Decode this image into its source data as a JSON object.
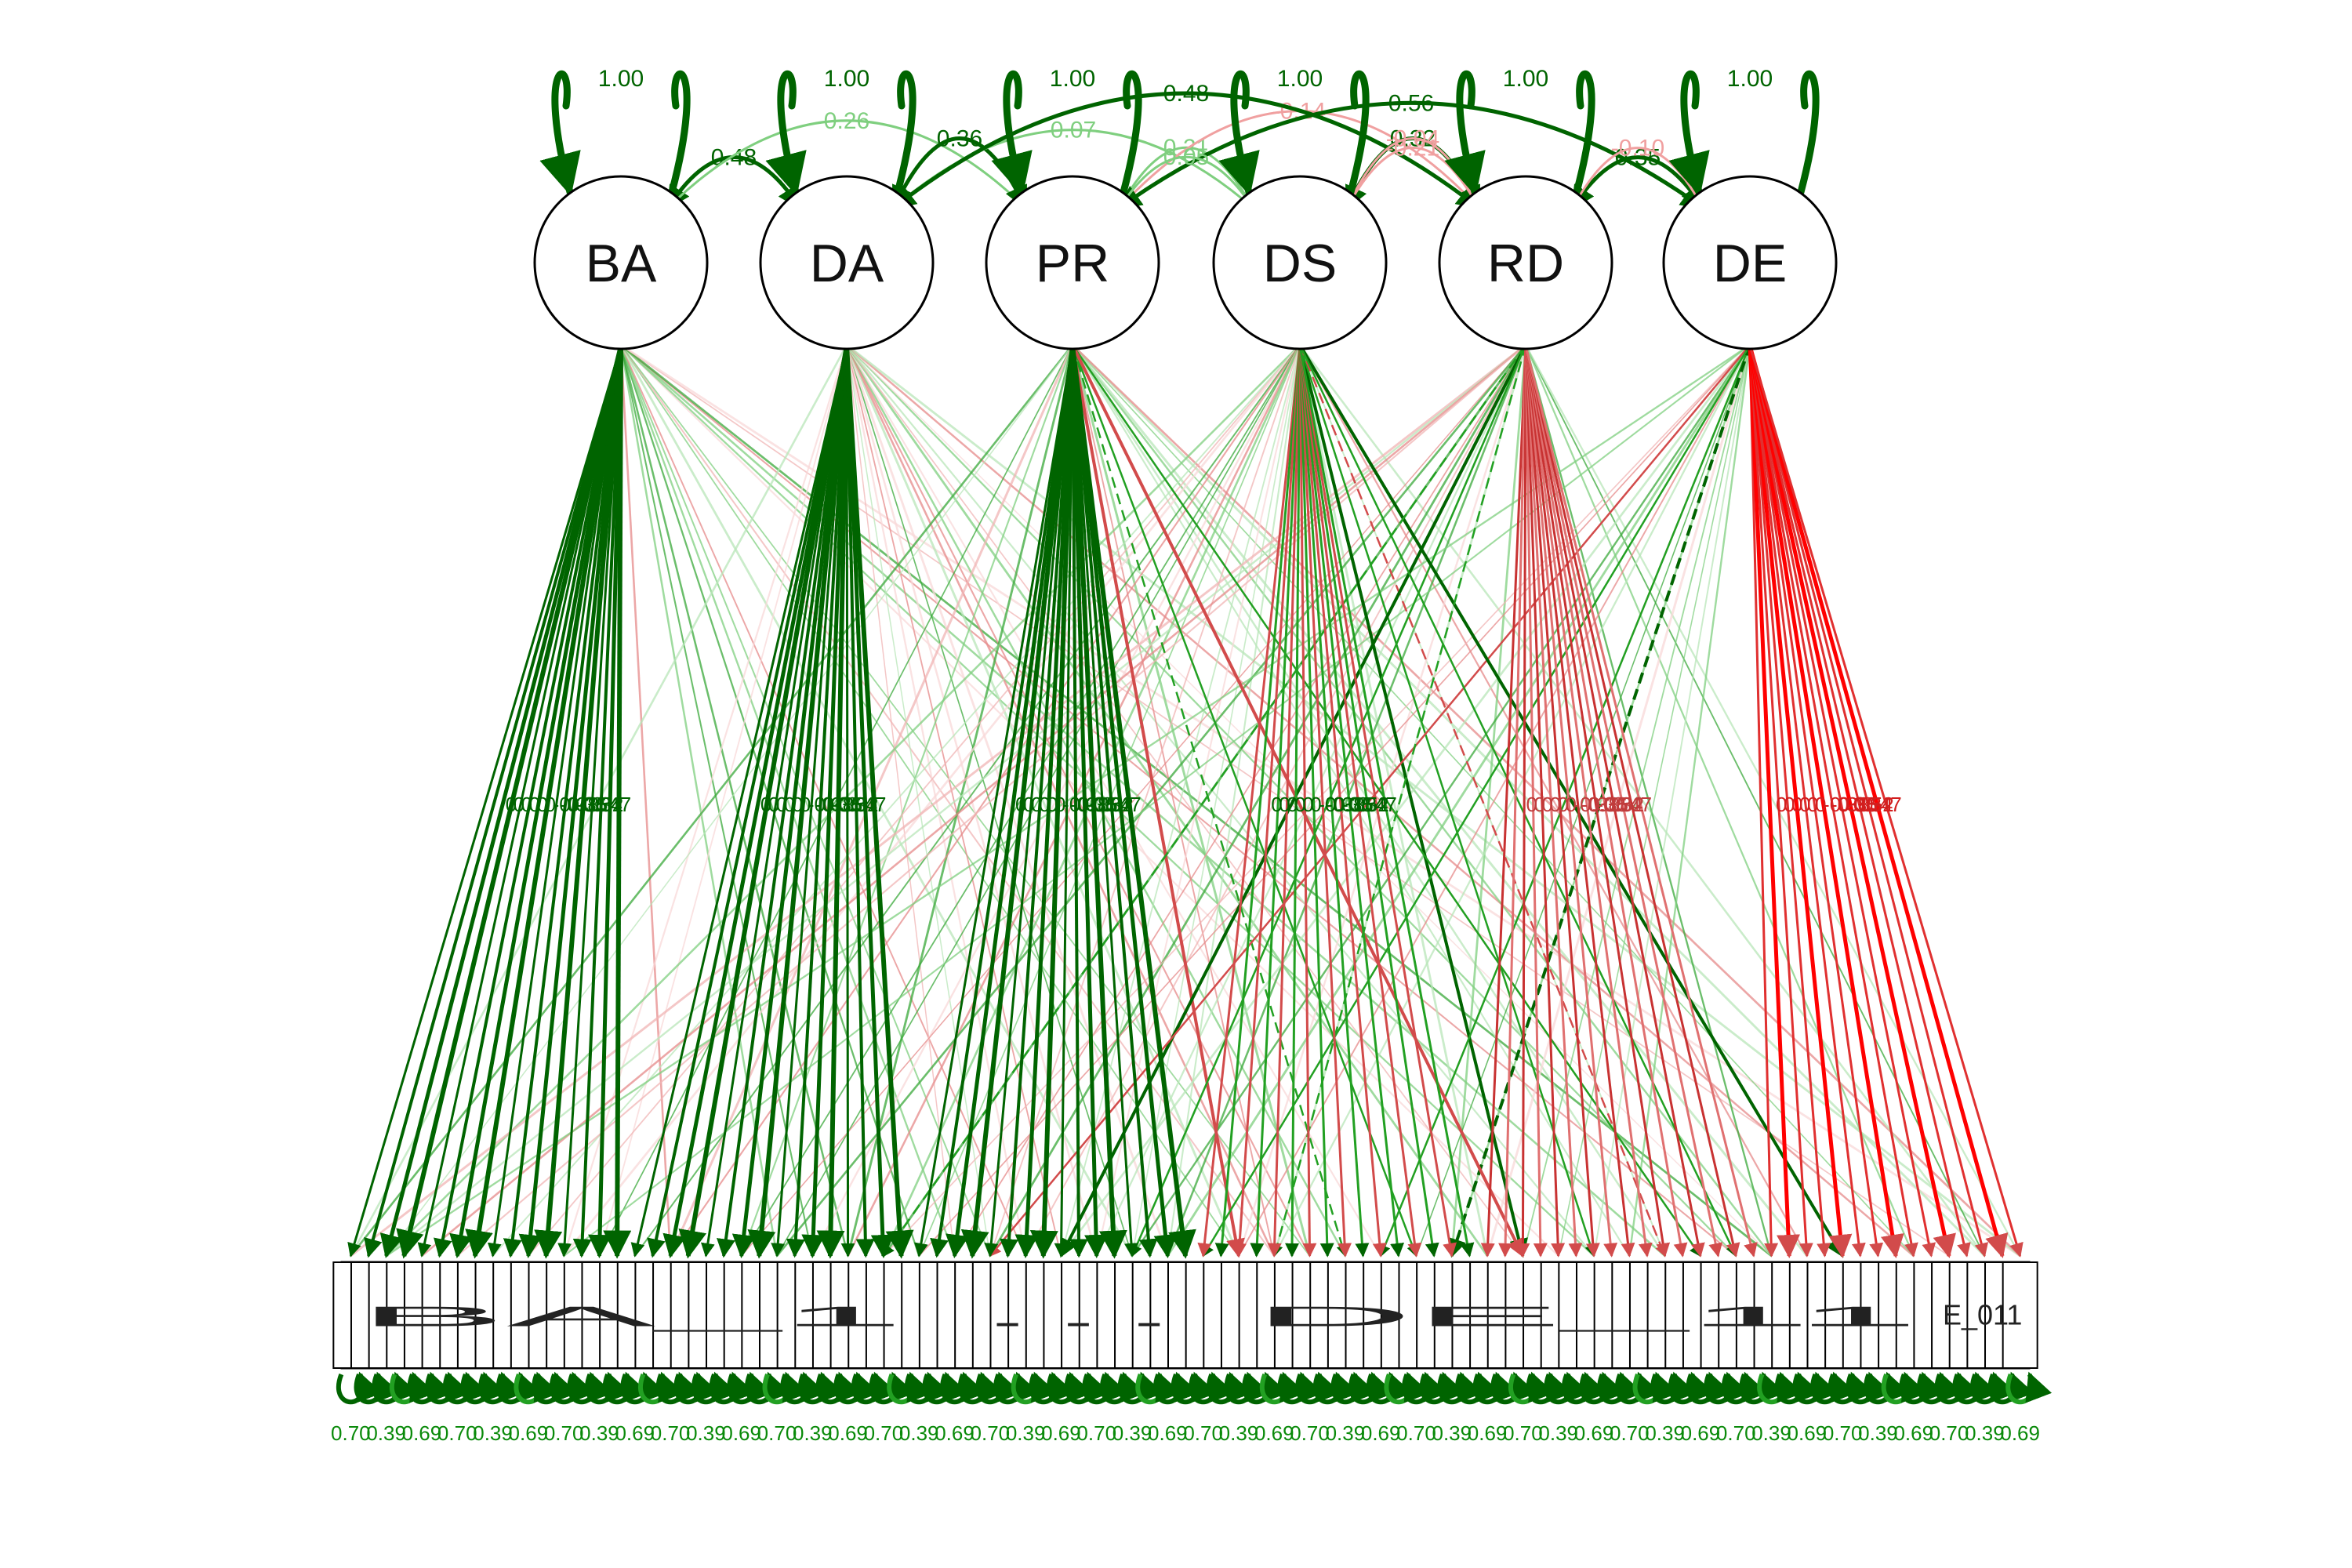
{
  "colors": {
    "positive_strong": "#006400",
    "positive_mid": "#22a022",
    "positive_light": "#a8dca8",
    "negative_strong": "#ff0000",
    "negative_mid": "#d24b4b",
    "negative_light": "#f0b4b4"
  },
  "latent_variables": [
    {
      "id": "BA",
      "label": "BA",
      "variance": "1.00"
    },
    {
      "id": "DA",
      "label": "DA",
      "variance": "1.00"
    },
    {
      "id": "PR",
      "label": "PR",
      "variance": "1.00"
    },
    {
      "id": "DS",
      "label": "DS",
      "variance": "1.00"
    },
    {
      "id": "RD",
      "label": "RD",
      "variance": "1.00"
    },
    {
      "id": "DE",
      "label": "DE",
      "variance": "1.00"
    }
  ],
  "covariances": [
    {
      "from": "BA",
      "to": "DA",
      "value": "0.48",
      "sign": "pos"
    },
    {
      "from": "BA",
      "to": "PR",
      "value": "0.26",
      "sign": "pos"
    },
    {
      "from": "DA",
      "to": "PR",
      "value": "0.36",
      "sign": "pos"
    },
    {
      "from": "DA",
      "to": "DS",
      "value": "0.07",
      "sign": "pos"
    },
    {
      "from": "PR",
      "to": "DS",
      "value": "0.21",
      "sign": "pos"
    },
    {
      "from": "PR",
      "to": "RD",
      "value": "-0.14",
      "sign": "neg"
    },
    {
      "from": "PR",
      "to": "DE",
      "value": "0.56",
      "sign": "pos"
    },
    {
      "from": "DA",
      "to": "RD",
      "value": "0.48",
      "sign": "pos"
    },
    {
      "from": "DS",
      "to": "RD",
      "value": "0.32",
      "sign": "pos"
    },
    {
      "from": "PR",
      "to": "DS",
      "value": "0.05",
      "sign": "pos"
    },
    {
      "from": "DS",
      "to": "RD",
      "value": "-0.21",
      "sign": "neg"
    },
    {
      "from": "DS",
      "to": "RD",
      "value": "-0.04",
      "sign": "neg"
    },
    {
      "from": "RD",
      "to": "DE",
      "value": "0.35",
      "sign": "pos"
    },
    {
      "from": "RD",
      "to": "DE",
      "value": "-0.10",
      "sign": "neg"
    }
  ],
  "loading_labels_visible": [
    "0",
    "0",
    "0",
    "0",
    "0",
    "0",
    "-0.38",
    "-0.36",
    "0.35",
    "-0.34",
    "0.52",
    "0.47",
    "0.35",
    "0.26"
  ],
  "indicator_row_label": "BA_1 … DE_11",
  "indicator_last_label": "E_011",
  "residual_labels_visible": [
    "0.70",
    "0.69",
    "0.39"
  ],
  "indicator_count": 95
}
